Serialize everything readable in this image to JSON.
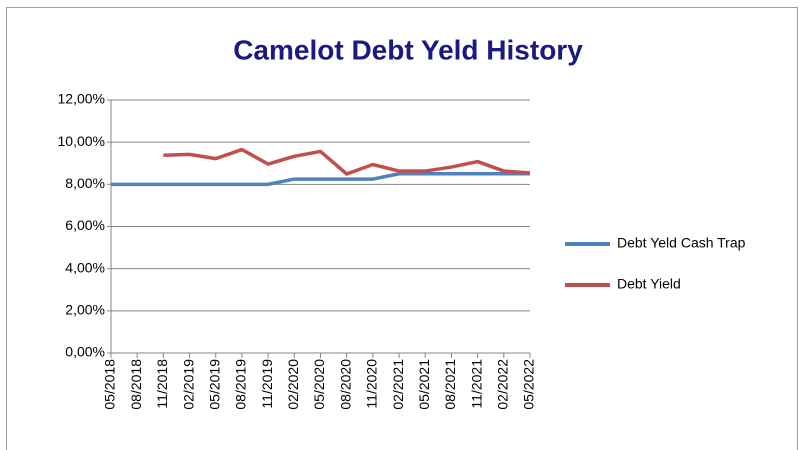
{
  "chart_data": {
    "type": "line",
    "title": "Camelot Debt Yeld History",
    "categories": [
      "05/2018",
      "08/2018",
      "11/2018",
      "02/2019",
      "05/2019",
      "08/2019",
      "11/2019",
      "02/2020",
      "05/2020",
      "08/2020",
      "11/2020",
      "02/2021",
      "05/2021",
      "08/2021",
      "11/2021",
      "02/2022",
      "05/2022"
    ],
    "series": [
      {
        "name": "Debt Yeld Cash Trap",
        "color": "#4f81bd",
        "values": [
          8,
          8,
          8,
          8,
          8,
          8,
          8,
          8.25,
          8.25,
          8.25,
          8.25,
          8.5,
          8.5,
          8.5,
          8.5,
          8.5,
          8.5
        ]
      },
      {
        "name": "Debt Yield",
        "color": "#c0504d",
        "values": [
          null,
          null,
          9.38,
          9.42,
          9.22,
          9.65,
          8.96,
          9.33,
          9.56,
          8.49,
          8.94,
          8.63,
          8.63,
          8.82,
          9.08,
          8.63,
          8.54
        ]
      }
    ],
    "ylim": [
      0,
      12
    ],
    "yticks": [
      {
        "value": 0,
        "label": "0,00%"
      },
      {
        "value": 2,
        "label": "2,00%"
      },
      {
        "value": 4,
        "label": "4,00%"
      },
      {
        "value": 6,
        "label": "6,00%"
      },
      {
        "value": 8,
        "label": "8,00%"
      },
      {
        "value": 10,
        "label": "10,00%"
      },
      {
        "value": 12,
        "label": "12,00%"
      }
    ],
    "grid": true,
    "legend": "right",
    "title_color": "#1a1a80"
  }
}
